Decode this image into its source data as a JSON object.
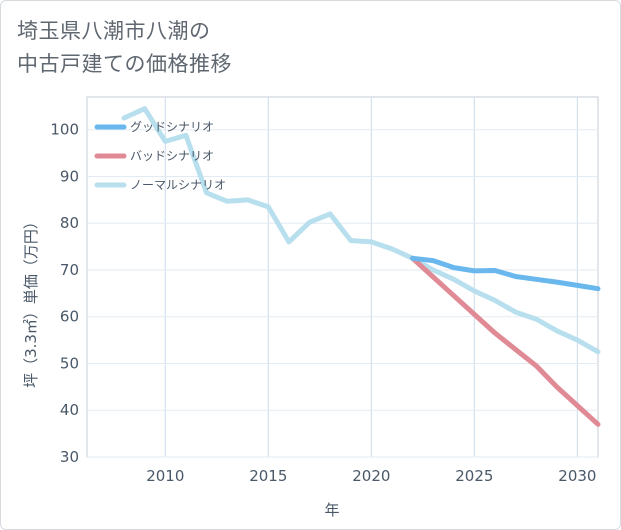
{
  "title_lines": [
    "埼玉県八潮市八潮の",
    "中古戸建ての価格推移"
  ],
  "chart_data": {
    "type": "line",
    "xlabel": "年",
    "ylabel": "坪（3.3㎡）単価（万円）",
    "xlim": [
      2006.2,
      2031
    ],
    "ylim": [
      30,
      107
    ],
    "x_ticks": [
      2010,
      2015,
      2020,
      2025,
      2030
    ],
    "y_ticks": [
      30,
      40,
      50,
      60,
      70,
      80,
      90,
      100
    ],
    "grid": true,
    "legend_position": "top-left",
    "series": [
      {
        "name": "グッドシナリオ",
        "color": "#6ab7ee",
        "x": [
          2022,
          2023,
          2024,
          2025,
          2026,
          2027,
          2028,
          2029,
          2030,
          2031
        ],
        "y": [
          72.5,
          72.0,
          70.5,
          69.8,
          69.9,
          68.6,
          68.0,
          67.4,
          66.7,
          66.0
        ]
      },
      {
        "name": "バッドシナリオ",
        "color": "#e08a96",
        "x": [
          2022,
          2023,
          2024,
          2025,
          2026,
          2027,
          2028,
          2029,
          2030,
          2031
        ],
        "y": [
          72.5,
          68.5,
          64.5,
          60.5,
          56.5,
          53.0,
          49.5,
          45.0,
          41.0,
          37.0
        ]
      },
      {
        "name": "ノーマルシナリオ",
        "color": "#b8dfee",
        "x": [
          2008,
          2009,
          2010,
          2011,
          2012,
          2013,
          2014,
          2015,
          2016,
          2017,
          2018,
          2019,
          2020,
          2021,
          2022,
          2023,
          2024,
          2025,
          2026,
          2027,
          2028,
          2029,
          2030,
          2031
        ],
        "y": [
          102.5,
          104.5,
          97.5,
          98.8,
          86.5,
          84.7,
          85.0,
          83.5,
          76.0,
          80.2,
          82.0,
          76.3,
          76.0,
          74.5,
          72.5,
          70.0,
          68.0,
          65.5,
          63.5,
          61.0,
          59.5,
          57.0,
          55.0,
          52.5
        ]
      }
    ]
  }
}
